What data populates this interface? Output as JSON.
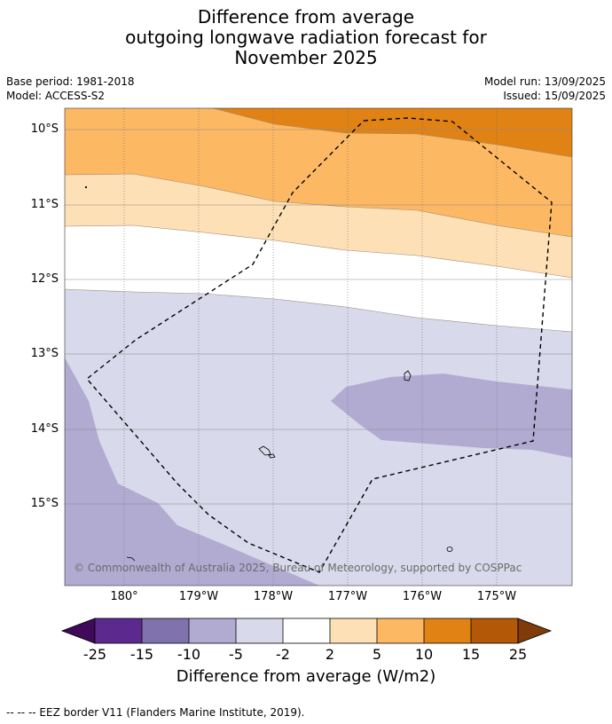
{
  "title": {
    "line1": "Difference from average",
    "line2": "outgoing longwave radiation forecast for",
    "line3": "November 2025"
  },
  "meta": {
    "base_period": "Base period: 1981-2018",
    "model": "Model: ACCESS-S2",
    "model_run": "Model run: 13/09/2025",
    "issued": "Issued: 15/09/2025"
  },
  "map": {
    "lat_labels": [
      "10°S",
      "11°S",
      "12°S",
      "13°S",
      "14°S",
      "15°S"
    ],
    "lon_labels": [
      "180°",
      "179°W",
      "178°W",
      "177°W",
      "176°W",
      "175°W"
    ],
    "copyright": "© Commonwealth of Australia 2025, Bureau of Meteorology, supported by COSPPac",
    "colors": {
      "m25": "#3f0a59",
      "m15_25": "#5c2a8e",
      "m10_15": "#8073ad",
      "m5_10": "#b1abd2",
      "m2_5": "#d8d9ea",
      "neutral": "#ffffff",
      "p2_5": "#fee0b6",
      "p5_10": "#fdb863",
      "p10_15": "#e08214",
      "p15_25": "#b35806",
      "p25": "#7f3b08"
    }
  },
  "colorbar": {
    "ticks": [
      "-25",
      "-15",
      "-10",
      "-5",
      "-2",
      "2",
      "5",
      "10",
      "15",
      "25"
    ],
    "label": "Difference from average (W/m2)"
  },
  "legend": {
    "eez": "--  --  -- EEZ border V11 (Flanders Marine Institute, 2019)."
  }
}
